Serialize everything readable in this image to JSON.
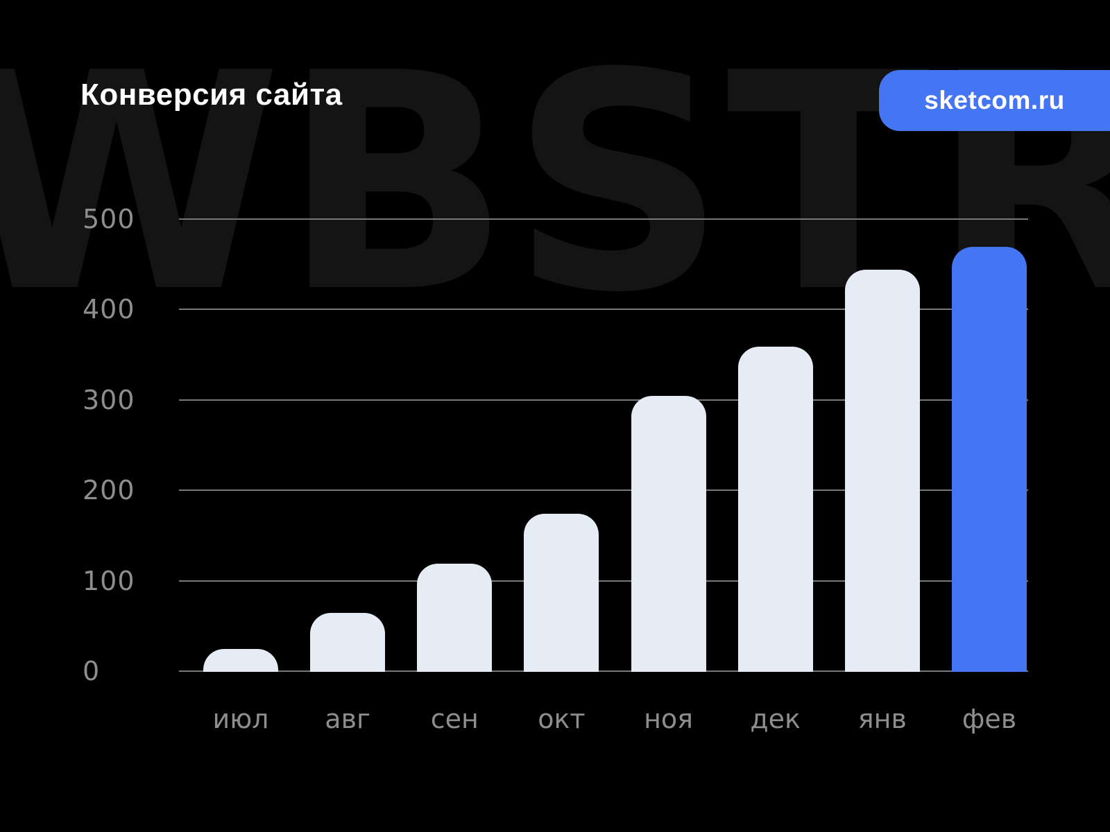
{
  "header": {
    "title": "Конверсия сайта",
    "badge_label": "sketcom.ru"
  },
  "watermark_text": "WBSTR",
  "colors": {
    "background": "#000000",
    "accent_blue": "#4475f3",
    "bar_light": "#e5ecf6",
    "watermark": "#141414",
    "axis_text": "#8e8e8e",
    "gridline": "#787878",
    "title_text": "#ffffff"
  },
  "chart_data": {
    "type": "bar",
    "title": "Конверсия сайта",
    "categories": [
      "июл",
      "авг",
      "сен",
      "окт",
      "ноя",
      "дек",
      "янв",
      "фев"
    ],
    "values": [
      25,
      65,
      120,
      175,
      305,
      360,
      445,
      470
    ],
    "highlight_index": 7,
    "highlight_category": "фев",
    "xlabel": "",
    "ylabel": "",
    "ylim": [
      0,
      500
    ],
    "yticks": [
      0,
      100,
      200,
      300,
      400,
      500
    ],
    "grid": "horizontal",
    "legend": "none",
    "bar_color": "#e5ecf6",
    "highlight_color": "#4475f3"
  }
}
